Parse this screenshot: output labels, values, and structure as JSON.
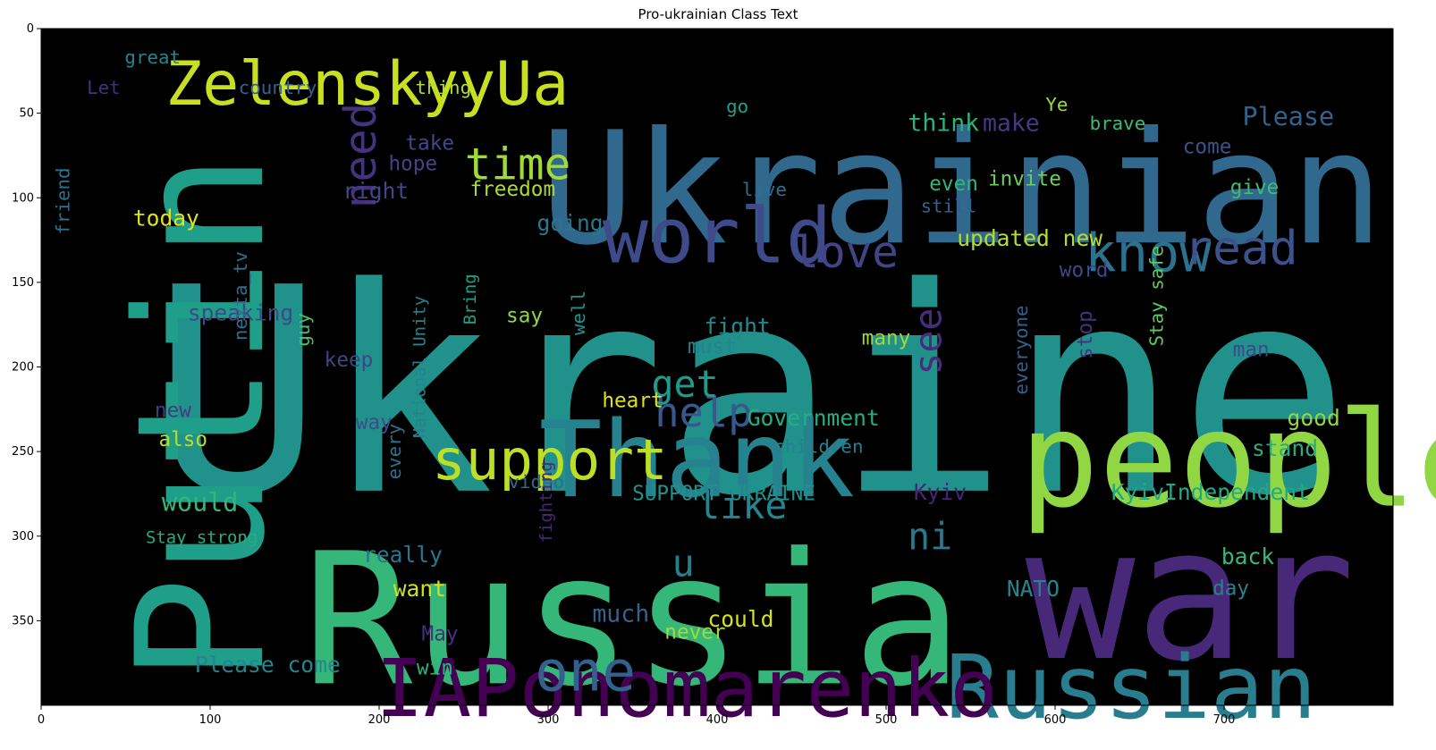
{
  "chart_data": {
    "type": "wordcloud",
    "title": "Pro-ukrainian Class Text",
    "image_width": 800,
    "image_height": 400,
    "x_ticks": [
      0,
      100,
      200,
      300,
      400,
      500,
      600,
      700
    ],
    "y_ticks": [
      0,
      50,
      100,
      150,
      200,
      250,
      300,
      350
    ],
    "background": "#000000",
    "colormap": "viridis",
    "words": [
      {
        "text": "Ukraine",
        "x": 420,
        "y": 215,
        "size": 168,
        "color": "#21918c"
      },
      {
        "text": "Russia",
        "x": 350,
        "y": 350,
        "size": 108,
        "color": "#35b779"
      },
      {
        "text": "Ukrainian",
        "x": 545,
        "y": 95,
        "size": 92,
        "color": "#31688e"
      },
      {
        "text": "war",
        "x": 680,
        "y": 335,
        "size": 108,
        "color": "#482878"
      },
      {
        "text": "people",
        "x": 720,
        "y": 255,
        "size": 78,
        "color": "#90d743"
      },
      {
        "text": "Putin",
        "x": 95,
        "y": 230,
        "size": 104,
        "color": "#1f9e89",
        "rotate": -90
      },
      {
        "text": "Thank",
        "x": 388,
        "y": 255,
        "size": 62,
        "color": "#26828e"
      },
      {
        "text": "Russian",
        "x": 645,
        "y": 390,
        "size": 52,
        "color": "#287d8e"
      },
      {
        "text": "world",
        "x": 400,
        "y": 123,
        "size": 45,
        "color": "#3e4a89"
      },
      {
        "text": "IAPonomarenko",
        "x": 382,
        "y": 390,
        "size": 47,
        "color": "#440154"
      },
      {
        "text": "ZelenskyyUa",
        "x": 193,
        "y": 33,
        "size": 36,
        "color": "#c8e020"
      },
      {
        "text": "support",
        "x": 301,
        "y": 255,
        "size": 33,
        "color": "#bddf26"
      },
      {
        "text": "one",
        "x": 322,
        "y": 380,
        "size": 33,
        "color": "#355f8d"
      },
      {
        "text": "know",
        "x": 655,
        "y": 133,
        "size": 31,
        "color": "#2c728e"
      },
      {
        "text": "read",
        "x": 710,
        "y": 130,
        "size": 28,
        "color": "#3b528b"
      },
      {
        "text": "love",
        "x": 476,
        "y": 132,
        "size": 26,
        "color": "#414487"
      },
      {
        "text": "time",
        "x": 282,
        "y": 80,
        "size": 26,
        "color": "#a0da39"
      },
      {
        "text": "need",
        "x": 189,
        "y": 75,
        "size": 26,
        "color": "#46327e",
        "rotate": -90
      },
      {
        "text": "help",
        "x": 392,
        "y": 227,
        "size": 24,
        "color": "#38588c"
      },
      {
        "text": "like",
        "x": 415,
        "y": 282,
        "size": 22,
        "color": "#25858e"
      },
      {
        "text": "get",
        "x": 381,
        "y": 210,
        "size": 22,
        "color": "#1e9b8a"
      },
      {
        "text": "see",
        "x": 525,
        "y": 185,
        "size": 22,
        "color": "#472d7b",
        "rotate": -90
      },
      {
        "text": "ni",
        "x": 526,
        "y": 300,
        "size": 22,
        "color": "#2a788e"
      },
      {
        "text": "u",
        "x": 380,
        "y": 316,
        "size": 22,
        "color": "#277f8e"
      },
      {
        "text": "Please",
        "x": 738,
        "y": 52,
        "size": 15,
        "color": "#33638d"
      },
      {
        "text": "make",
        "x": 574,
        "y": 56,
        "size": 14,
        "color": "#443983"
      },
      {
        "text": "think",
        "x": 534,
        "y": 56,
        "size": 14,
        "color": "#2db27d"
      },
      {
        "text": "brave",
        "x": 637,
        "y": 56,
        "size": 11,
        "color": "#3dbc74"
      },
      {
        "text": "invite",
        "x": 582,
        "y": 89,
        "size": 12,
        "color": "#6ccd5a"
      },
      {
        "text": "fight",
        "x": 412,
        "y": 176,
        "size": 13,
        "color": "#238a8d"
      },
      {
        "text": "today",
        "x": 74,
        "y": 112,
        "size": 13,
        "color": "#dfe318"
      },
      {
        "text": "freedom",
        "x": 279,
        "y": 95,
        "size": 12,
        "color": "#addc30"
      },
      {
        "text": "speaking",
        "x": 118,
        "y": 168,
        "size": 13,
        "color": "#404688"
      },
      {
        "text": "right",
        "x": 198,
        "y": 96,
        "size": 13,
        "color": "#3f4788"
      },
      {
        "text": "hope",
        "x": 220,
        "y": 80,
        "size": 12,
        "color": "#414487"
      },
      {
        "text": "take",
        "x": 230,
        "y": 68,
        "size": 12,
        "color": "#3e4989"
      },
      {
        "text": "going",
        "x": 313,
        "y": 115,
        "size": 13,
        "color": "#2a788e"
      },
      {
        "text": "Government",
        "x": 457,
        "y": 230,
        "size": 13,
        "color": "#26ad81"
      },
      {
        "text": "children",
        "x": 460,
        "y": 247,
        "size": 11,
        "color": "#277f8e"
      },
      {
        "text": "video",
        "x": 293,
        "y": 268,
        "size": 11,
        "color": "#2f6b8e"
      },
      {
        "text": "would",
        "x": 94,
        "y": 280,
        "size": 15,
        "color": "#35b779"
      },
      {
        "text": "Kyiv",
        "x": 532,
        "y": 274,
        "size": 13,
        "color": "#482475"
      },
      {
        "text": "KyivIndependent",
        "x": 692,
        "y": 274,
        "size": 13,
        "color": "#22a884"
      },
      {
        "text": "stand",
        "x": 736,
        "y": 248,
        "size": 13,
        "color": "#27ad81"
      },
      {
        "text": "good",
        "x": 753,
        "y": 230,
        "size": 13,
        "color": "#90d743"
      },
      {
        "text": "back",
        "x": 714,
        "y": 312,
        "size": 13,
        "color": "#38b977"
      },
      {
        "text": "NATO",
        "x": 587,
        "y": 331,
        "size": 13,
        "color": "#25848e"
      },
      {
        "text": "want",
        "x": 224,
        "y": 331,
        "size": 13,
        "color": "#d0e11c"
      },
      {
        "text": "really",
        "x": 214,
        "y": 311,
        "size": 13,
        "color": "#2b758e"
      },
      {
        "text": "much",
        "x": 343,
        "y": 346,
        "size": 14,
        "color": "#33638d"
      },
      {
        "text": "could",
        "x": 414,
        "y": 349,
        "size": 13,
        "color": "#d5e21a"
      },
      {
        "text": "never",
        "x": 387,
        "y": 357,
        "size": 12,
        "color": "#a2da37"
      },
      {
        "text": "day",
        "x": 704,
        "y": 331,
        "size": 12,
        "color": "#26828e"
      },
      {
        "text": "Please come",
        "x": 134,
        "y": 376,
        "size": 13,
        "color": "#25848e"
      },
      {
        "text": "win",
        "x": 233,
        "y": 378,
        "size": 12,
        "color": "#2db27d"
      },
      {
        "text": "May",
        "x": 236,
        "y": 358,
        "size": 12,
        "color": "#46307e"
      },
      {
        "text": "updated new",
        "x": 585,
        "y": 124,
        "size": 13,
        "color": "#b5de2b"
      },
      {
        "text": "SUPPORT UKRAINE",
        "x": 404,
        "y": 275,
        "size": 12,
        "color": "#21918c"
      },
      {
        "text": "heart",
        "x": 350,
        "y": 220,
        "size": 12,
        "color": "#dde318"
      },
      {
        "text": "new",
        "x": 78,
        "y": 226,
        "size": 12,
        "color": "#443a83"
      },
      {
        "text": "also",
        "x": 84,
        "y": 243,
        "size": 12,
        "color": "#b8de29"
      },
      {
        "text": "way",
        "x": 197,
        "y": 233,
        "size": 12,
        "color": "#3e4c8a"
      },
      {
        "text": "keep",
        "x": 182,
        "y": 196,
        "size": 12,
        "color": "#404588"
      },
      {
        "text": "say",
        "x": 286,
        "y": 170,
        "size": 12,
        "color": "#8fd744"
      },
      {
        "text": "well",
        "x": 318,
        "y": 168,
        "size": 11,
        "color": "#20928c",
        "rotate": -90
      },
      {
        "text": "must",
        "x": 397,
        "y": 188,
        "size": 12,
        "color": "#25838e"
      },
      {
        "text": "everyone",
        "x": 580,
        "y": 190,
        "size": 11,
        "color": "#34608d",
        "rotate": -90
      },
      {
        "text": "stop",
        "x": 618,
        "y": 181,
        "size": 12,
        "color": "#46327e",
        "rotate": -90
      },
      {
        "text": "Stay safe",
        "x": 660,
        "y": 158,
        "size": 11,
        "color": "#5ec962",
        "rotate": -90
      },
      {
        "text": "man",
        "x": 716,
        "y": 190,
        "size": 12,
        "color": "#3f4889"
      },
      {
        "text": "many",
        "x": 500,
        "y": 183,
        "size": 12,
        "color": "#9bd93c"
      },
      {
        "text": "guy",
        "x": 155,
        "y": 178,
        "size": 11,
        "color": "#4ac16d",
        "rotate": -90
      },
      {
        "text": "nexta_tv",
        "x": 118,
        "y": 158,
        "size": 11,
        "color": "#2e6f8e",
        "rotate": -90
      },
      {
        "text": "give",
        "x": 718,
        "y": 94,
        "size": 12,
        "color": "#3dbc74"
      },
      {
        "text": "come",
        "x": 690,
        "y": 70,
        "size": 12,
        "color": "#3b528b"
      },
      {
        "text": "even",
        "x": 540,
        "y": 92,
        "size": 12,
        "color": "#31b57b"
      },
      {
        "text": "still",
        "x": 537,
        "y": 105,
        "size": 11,
        "color": "#34618d"
      },
      {
        "text": "live",
        "x": 428,
        "y": 95,
        "size": 11,
        "color": "#2d708e"
      },
      {
        "text": "word",
        "x": 617,
        "y": 143,
        "size": 12,
        "color": "#404688"
      },
      {
        "text": "go",
        "x": 412,
        "y": 46,
        "size": 11,
        "color": "#1fa088"
      },
      {
        "text": "country",
        "x": 140,
        "y": 35,
        "size": 11,
        "color": "#33638d"
      },
      {
        "text": "great",
        "x": 66,
        "y": 17,
        "size": 11,
        "color": "#25838e"
      },
      {
        "text": "thing",
        "x": 238,
        "y": 35,
        "size": 11,
        "color": "#b0dd2f"
      },
      {
        "text": "Let",
        "x": 37,
        "y": 35,
        "size": 11,
        "color": "#46307e"
      },
      {
        "text": "Ye",
        "x": 601,
        "y": 45,
        "size": 11,
        "color": "#9fda3a"
      },
      {
        "text": "friend",
        "x": 13,
        "y": 102,
        "size": 11,
        "color": "#2c738e",
        "rotate": -90
      },
      {
        "text": "every",
        "x": 209,
        "y": 250,
        "size": 11,
        "color": "#2d718e",
        "rotate": -90
      },
      {
        "text": "National Unity",
        "x": 224,
        "y": 200,
        "size": 10,
        "color": "#25838e",
        "rotate": -90
      },
      {
        "text": "Bring",
        "x": 254,
        "y": 160,
        "size": 10,
        "color": "#1fa187",
        "rotate": -90
      },
      {
        "text": "fighting",
        "x": 299,
        "y": 280,
        "size": 10,
        "color": "#482878",
        "rotate": -90
      },
      {
        "text": "Stay strong",
        "x": 95,
        "y": 301,
        "size": 10,
        "color": "#27ad81"
      }
    ]
  }
}
